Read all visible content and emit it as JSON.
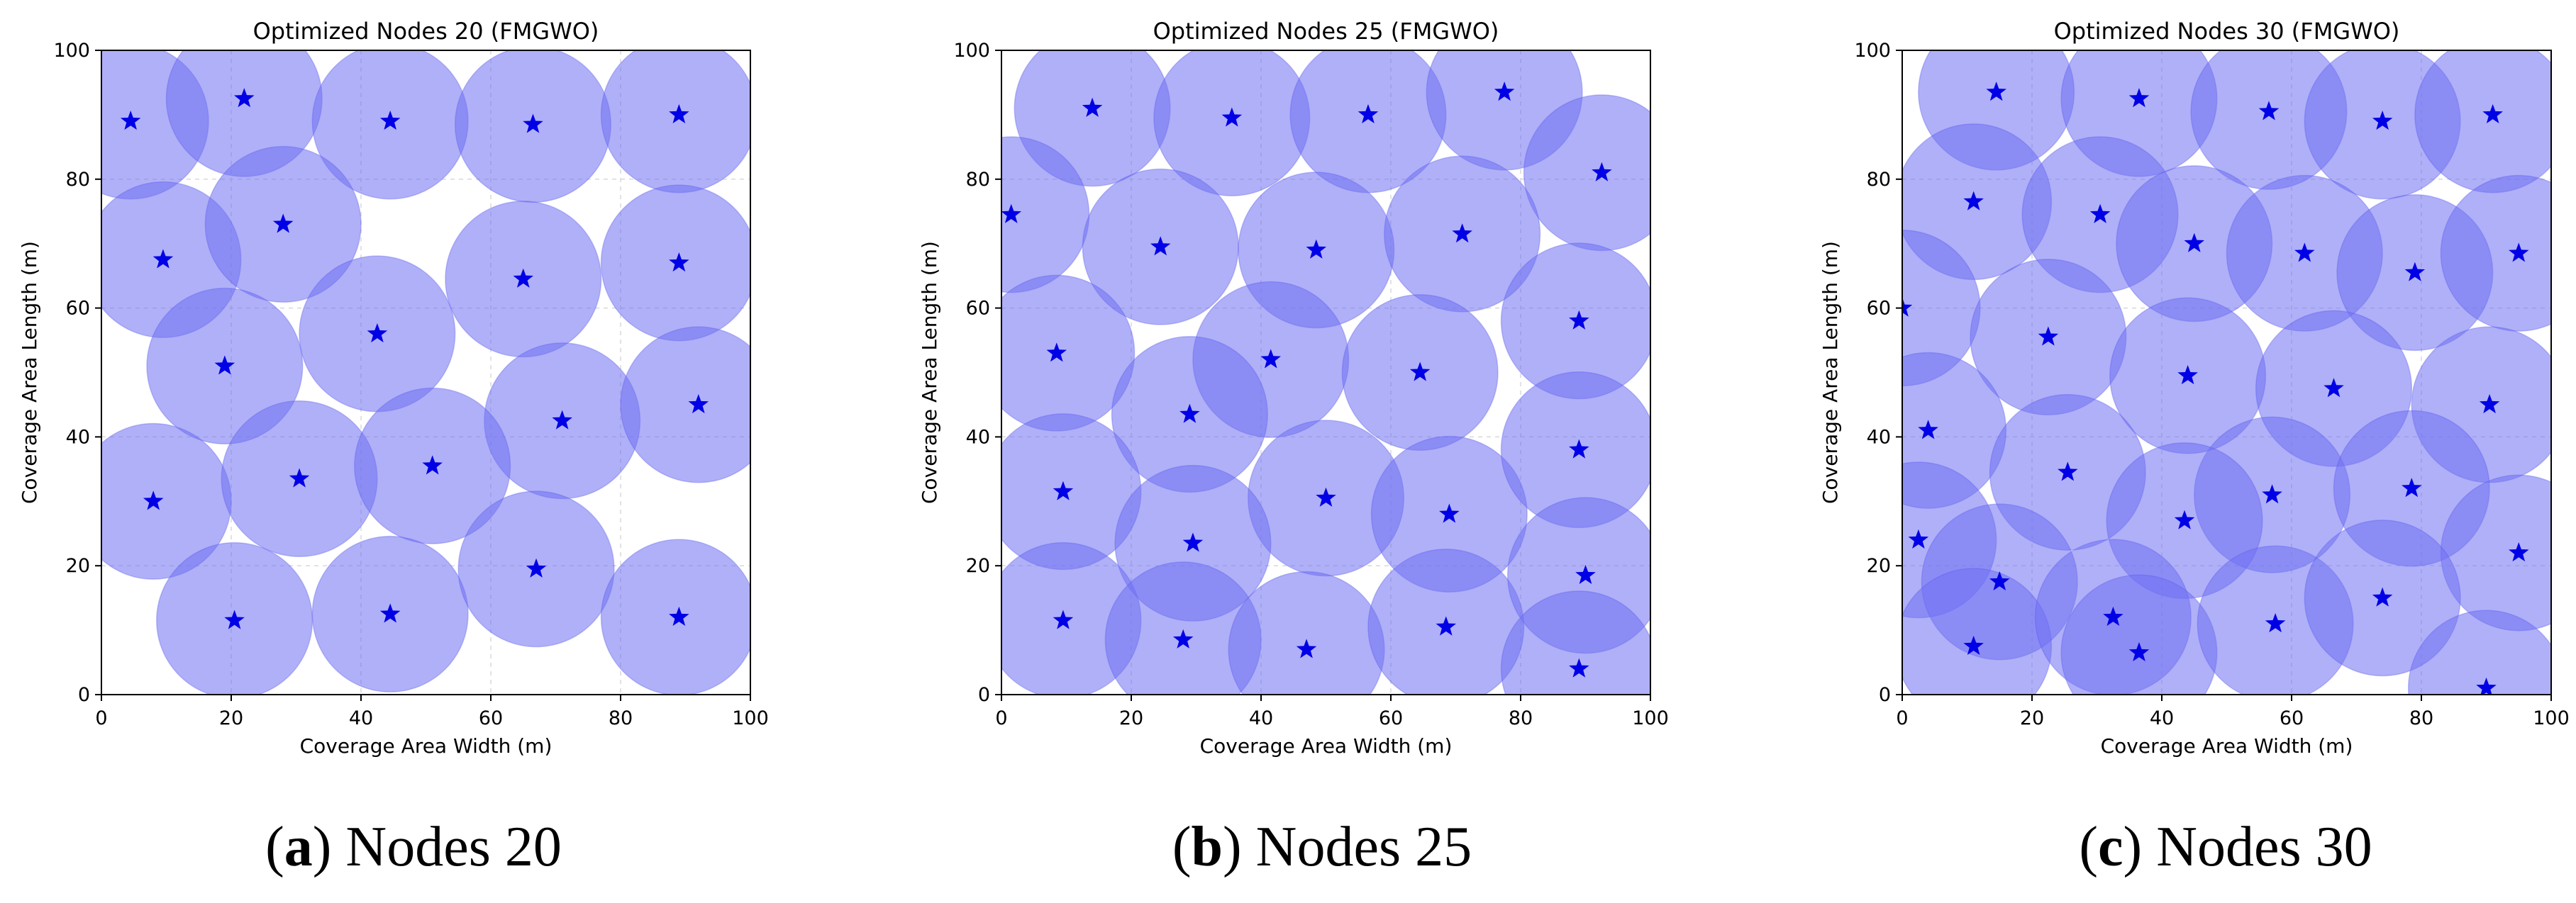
{
  "chart_data": [
    {
      "type": "scatter",
      "title": "Optimized Nodes 20 (FMGWO)",
      "xlabel": "Coverage Area Width (m)",
      "ylabel": "Coverage Area Length (m)",
      "xlim": [
        0,
        100
      ],
      "ylim": [
        0,
        100
      ],
      "xticks": [
        "0",
        "20",
        "40",
        "60",
        "80",
        "100"
      ],
      "yticks": [
        "0",
        "20",
        "40",
        "60",
        "80",
        "100"
      ],
      "grid": true,
      "coverage_radius": 12,
      "circle_color": "#6f6ff2",
      "marker_color": "#0000e6",
      "series": [
        {
          "name": "Nodes",
          "points": [
            [
              4.5,
              89
            ],
            [
              22,
              92.5
            ],
            [
              44.5,
              89
            ],
            [
              66.5,
              88.5
            ],
            [
              89,
              90
            ],
            [
              9.5,
              67.5
            ],
            [
              28,
              73
            ],
            [
              65,
              64.5
            ],
            [
              89,
              67
            ],
            [
              19,
              51
            ],
            [
              42.5,
              56
            ],
            [
              71,
              42.5
            ],
            [
              92,
              45
            ],
            [
              8,
              30
            ],
            [
              30.5,
              33.5
            ],
            [
              51,
              35.5
            ],
            [
              20.5,
              11.5
            ],
            [
              44.5,
              12.5
            ],
            [
              67,
              19.5
            ],
            [
              89,
              12
            ]
          ]
        }
      ]
    },
    {
      "type": "scatter",
      "title": "Optimized Nodes 25 (FMGWO)",
      "xlabel": "Coverage Area Width (m)",
      "ylabel": "Coverage Area Length (m)",
      "xlim": [
        0,
        100
      ],
      "ylim": [
        0,
        100
      ],
      "xticks": [
        "0",
        "20",
        "40",
        "60",
        "80",
        "100"
      ],
      "yticks": [
        "0",
        "20",
        "40",
        "60",
        "80",
        "100"
      ],
      "grid": true,
      "coverage_radius": 12,
      "circle_color": "#6f6ff2",
      "marker_color": "#0000e6",
      "series": [
        {
          "name": "Nodes",
          "points": [
            [
              14,
              91
            ],
            [
              35.5,
              89.5
            ],
            [
              56.5,
              90
            ],
            [
              77.5,
              93.5
            ],
            [
              92.5,
              81
            ],
            [
              1.5,
              74.5
            ],
            [
              24.5,
              69.5
            ],
            [
              48.5,
              69
            ],
            [
              71,
              71.5
            ],
            [
              8.5,
              53
            ],
            [
              41.5,
              52
            ],
            [
              64.5,
              50
            ],
            [
              89,
              58
            ],
            [
              29,
              43.5
            ],
            [
              9.5,
              31.5
            ],
            [
              50,
              30.5
            ],
            [
              69,
              28
            ],
            [
              89,
              38
            ],
            [
              29.5,
              23.5
            ],
            [
              9.5,
              11.5
            ],
            [
              28,
              8.5
            ],
            [
              47,
              7
            ],
            [
              68.5,
              10.5
            ],
            [
              90,
              18.5
            ],
            [
              89,
              4
            ]
          ]
        }
      ]
    },
    {
      "type": "scatter",
      "title": "Optimized Nodes 30 (FMGWO)",
      "xlabel": "Coverage Area Width (m)",
      "ylabel": "Coverage Area Length (m)",
      "xlim": [
        0,
        100
      ],
      "ylim": [
        0,
        100
      ],
      "xticks": [
        "0",
        "20",
        "40",
        "60",
        "80",
        "100"
      ],
      "yticks": [
        "0",
        "20",
        "40",
        "60",
        "80",
        "100"
      ],
      "grid": true,
      "coverage_radius": 12,
      "circle_color": "#6f6ff2",
      "marker_color": "#0000e6",
      "series": [
        {
          "name": "Nodes",
          "points": [
            [
              14.5,
              93.5
            ],
            [
              36.5,
              92.5
            ],
            [
              56.5,
              90.5
            ],
            [
              74,
              89
            ],
            [
              91,
              90
            ],
            [
              11,
              76.5
            ],
            [
              30.5,
              74.5
            ],
            [
              45,
              70
            ],
            [
              62,
              68.5
            ],
            [
              79,
              65.5
            ],
            [
              95,
              68.5
            ],
            [
              0,
              60
            ],
            [
              22.5,
              55.5
            ],
            [
              44,
              49.5
            ],
            [
              66.5,
              47.5
            ],
            [
              90.5,
              45
            ],
            [
              4,
              41
            ],
            [
              25.5,
              34.5
            ],
            [
              57,
              31
            ],
            [
              78.5,
              32
            ],
            [
              2.5,
              24
            ],
            [
              15,
              17.5
            ],
            [
              43.5,
              27
            ],
            [
              95,
              22
            ],
            [
              11,
              7.5
            ],
            [
              32.5,
              12
            ],
            [
              36.5,
              6.5
            ],
            [
              57.5,
              11
            ],
            [
              74,
              15
            ],
            [
              90,
              1
            ]
          ]
        }
      ]
    }
  ],
  "captions": [
    {
      "label": "a",
      "text": " Nodes 20",
      "open": "(",
      "close": ")"
    },
    {
      "label": "b",
      "text": " Nodes 25",
      "open": "(",
      "close": ")"
    },
    {
      "label": "c",
      "text": " Nodes 30",
      "open": "(",
      "close": ")"
    }
  ]
}
